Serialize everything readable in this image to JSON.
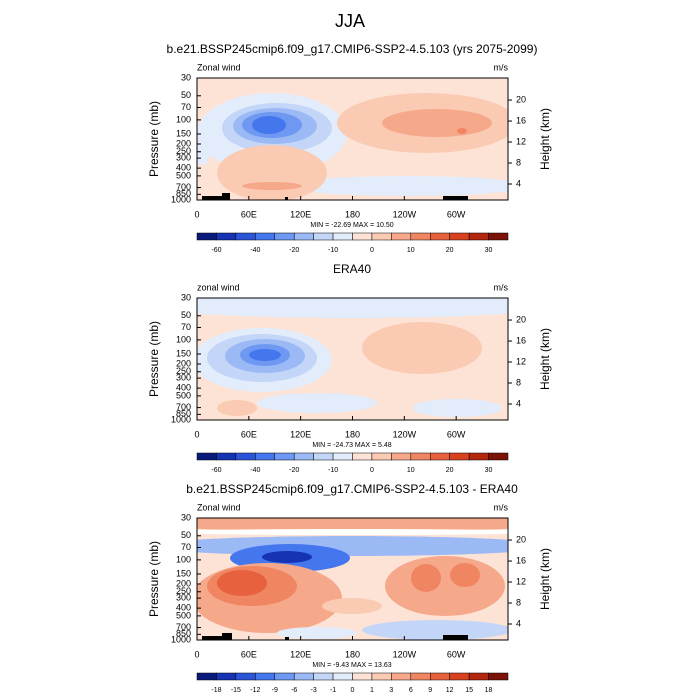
{
  "title": "JJA",
  "chart_data": [
    {
      "type": "contour",
      "title": "b.e21.BSSP245cmip6.f09_g17.CMIP6-SSP2-4.5.103 (yrs 2075-2099)",
      "left_label": "Zonal wind",
      "right_label": "m/s",
      "ylabel": "Pressure (mb)",
      "y2label": "Height (km)",
      "log_y": true,
      "xlim": [
        0,
        360
      ],
      "xticks": [
        0,
        {
          "value": 60,
          "label": "60E"
        },
        {
          "value": 120,
          "label": "120E"
        },
        180,
        {
          "value": 240,
          "label": "120W"
        },
        {
          "value": 300,
          "label": "60W"
        }
      ],
      "ylim": [
        1000,
        30
      ],
      "yticks": [
        30,
        50,
        70,
        100,
        150,
        200,
        250,
        300,
        400,
        500,
        700,
        850,
        1000
      ],
      "y2lim": [
        0.95,
        24.2
      ],
      "y2ticks": [
        4,
        8,
        12,
        16,
        20
      ],
      "stats": "MIN = -22.69  MAX =  10.50",
      "colorbar": {
        "levels": [
          -60,
          null,
          -40,
          null,
          -20,
          null,
          -10,
          null,
          0,
          null,
          10,
          null,
          20,
          null,
          30
        ],
        "colors": [
          "#0a1a7a",
          "#1633b4",
          "#2a55d8",
          "#4477ee",
          "#6f98f2",
          "#9bbaf5",
          "#c3d6f8",
          "#e2ecfb",
          "#fde3d6",
          "#fbcab3",
          "#f6a88a",
          "#f08562",
          "#e8613e",
          "#d8421f",
          "#b5260e",
          "#7a1205"
        ]
      }
    },
    {
      "type": "contour",
      "title": "ERA40",
      "left_label": "zonal wind",
      "right_label": "m/s",
      "ylabel": "Pressure (mb)",
      "y2label": "Height (km)",
      "log_y": true,
      "xlim": [
        0,
        360
      ],
      "xticks": [
        0,
        {
          "value": 60,
          "label": "60E"
        },
        {
          "value": 120,
          "label": "120E"
        },
        180,
        {
          "value": 240,
          "label": "120W"
        },
        {
          "value": 300,
          "label": "60W"
        }
      ],
      "ylim": [
        1000,
        30
      ],
      "yticks": [
        30,
        50,
        70,
        100,
        150,
        200,
        250,
        300,
        400,
        500,
        700,
        850,
        1000
      ],
      "y2lim": [
        0.95,
        24.2
      ],
      "y2ticks": [
        4,
        8,
        12,
        16,
        20
      ],
      "stats": "MIN = -24.73  MAX =   5.48",
      "colorbar": {
        "levels": [
          -60,
          null,
          -40,
          null,
          -20,
          null,
          -10,
          null,
          0,
          null,
          10,
          null,
          20,
          null,
          30
        ],
        "colors": [
          "#0a1a7a",
          "#1633b4",
          "#2a55d8",
          "#4477ee",
          "#6f98f2",
          "#9bbaf5",
          "#c3d6f8",
          "#e2ecfb",
          "#fde3d6",
          "#fbcab3",
          "#f6a88a",
          "#f08562",
          "#e8613e",
          "#d8421f",
          "#b5260e",
          "#7a1205"
        ]
      }
    },
    {
      "type": "contour",
      "title": "b.e21.BSSP245cmip6.f09_g17.CMIP6-SSP2-4.5.103 - ERA40",
      "left_label": "Zonal wind",
      "right_label": "m/s",
      "ylabel": "Pressure (mb)",
      "y2label": "Height (km)",
      "log_y": true,
      "xlim": [
        0,
        360
      ],
      "xticks": [
        0,
        {
          "value": 60,
          "label": "60E"
        },
        {
          "value": 120,
          "label": "120E"
        },
        180,
        {
          "value": 240,
          "label": "120W"
        },
        {
          "value": 300,
          "label": "60W"
        }
      ],
      "ylim": [
        1000,
        30
      ],
      "yticks": [
        30,
        50,
        70,
        100,
        150,
        200,
        250,
        300,
        400,
        500,
        700,
        850,
        1000
      ],
      "y2lim": [
        0.95,
        24.2
      ],
      "y2ticks": [
        4,
        8,
        12,
        16,
        20
      ],
      "stats": "MIN =  -9.43  MAX =  13.63",
      "colorbar": {
        "levels": [
          -18,
          -15,
          -12,
          -9,
          -6,
          -3,
          -1,
          0,
          1,
          3,
          6,
          9,
          12,
          15,
          18
        ],
        "colors": [
          "#0a1a7a",
          "#1633b4",
          "#2a55d8",
          "#4477ee",
          "#6f98f2",
          "#9bbaf5",
          "#c3d6f8",
          "#e2ecfb",
          "#fde3d6",
          "#fbcab3",
          "#f6a88a",
          "#f08562",
          "#e8613e",
          "#d8421f",
          "#b5260e",
          "#7a1205"
        ]
      }
    }
  ]
}
